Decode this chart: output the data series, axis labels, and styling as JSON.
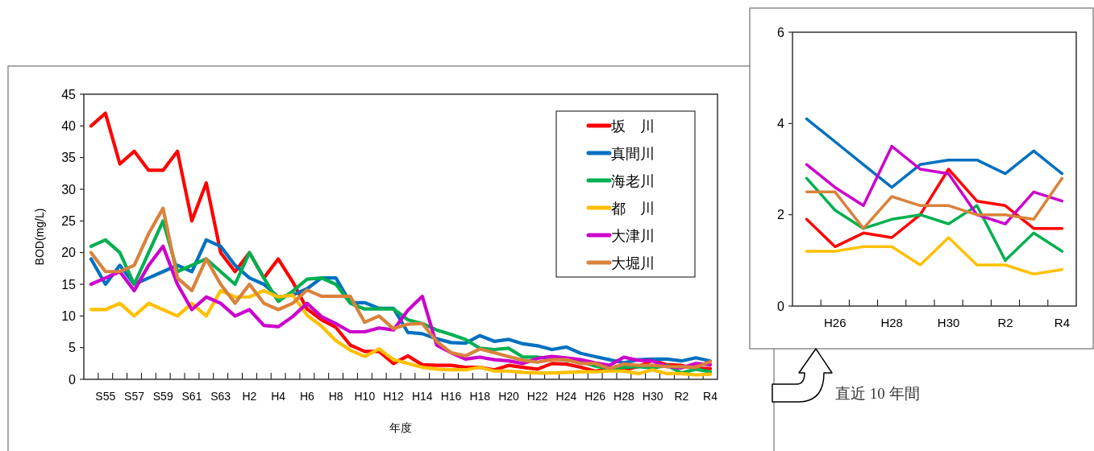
{
  "chart_data": [
    {
      "type": "line",
      "xlabel": "年度",
      "ylabel": "BOD(mg/L)",
      "categories": [
        null,
        "S55",
        null,
        "S57",
        null,
        "S59",
        null,
        "S61",
        null,
        "S63",
        null,
        "H2",
        null,
        "H4",
        null,
        "H6",
        null,
        "H8",
        null,
        "H10",
        null,
        "H12",
        null,
        "H14",
        null,
        "H16",
        null,
        "H18",
        null,
        "H20",
        null,
        "H22",
        null,
        "H24",
        null,
        "H26",
        null,
        "H28",
        null,
        "H30",
        null,
        "R2",
        null,
        "R4"
      ],
      "ylim": [
        0,
        45
      ],
      "yticks": [
        0,
        5,
        10,
        15,
        20,
        25,
        30,
        35,
        40,
        45
      ],
      "legend": "top right",
      "line_style": "solid",
      "series": [
        {
          "name": "坂　川",
          "color": "#ff0000",
          "values": [
            40,
            42,
            34,
            36,
            33,
            33,
            36,
            25,
            31,
            20,
            17,
            20,
            16,
            19,
            15.4,
            11.1,
            9.4,
            8.2,
            5.4,
            4.4,
            4.4,
            2.5,
            3.7,
            2.3,
            2.2,
            2.2,
            1.9,
            1.9,
            1.5,
            2.2,
            1.9,
            1.6,
            2.5,
            2.4,
            1.9,
            1.3,
            1.6,
            1.5,
            2.0,
            3.0,
            2.3,
            2.2,
            1.7,
            1.7
          ]
        },
        {
          "name": "真間川",
          "color": "#0070c0",
          "values": [
            19,
            15,
            18,
            15,
            16,
            17,
            18,
            17,
            22,
            21,
            18,
            16,
            15,
            13,
            13.3,
            14.3,
            16,
            16,
            12.1,
            12.1,
            11.2,
            11.2,
            7.4,
            7.2,
            6.4,
            5.8,
            5.7,
            6.9,
            6.0,
            6.3,
            5.6,
            5.3,
            4.7,
            5.1,
            4.1,
            3.6,
            3.1,
            2.6,
            3.1,
            3.2,
            3.2,
            2.9,
            3.4,
            2.9
          ]
        },
        {
          "name": "海老川",
          "color": "#00b050",
          "values": [
            21,
            22,
            20,
            15,
            20,
            25,
            17,
            18,
            19,
            17,
            15,
            20,
            16,
            12.3,
            13.9,
            15.8,
            16,
            15,
            12,
            11.1,
            11.1,
            11.1,
            9.4,
            8.8,
            7.8,
            7.1,
            6.3,
            4.9,
            4.7,
            4.9,
            3.5,
            3.5,
            3.3,
            3.0,
            2.8,
            2.1,
            1.7,
            1.9,
            2.0,
            1.8,
            2.2,
            1.0,
            1.6,
            1.2
          ]
        },
        {
          "name": "都　川",
          "color": "#ffc000",
          "values": [
            11,
            11,
            12,
            10,
            12,
            11,
            10,
            12,
            10,
            14,
            13,
            13,
            14,
            13,
            13.3,
            10.1,
            8.4,
            6.1,
            4.6,
            3.6,
            4.8,
            3.1,
            2.5,
            1.9,
            1.6,
            1.5,
            1.5,
            1.9,
            1.3,
            1.3,
            1.1,
            1.0,
            1.0,
            1.1,
            1.2,
            1.2,
            1.3,
            1.3,
            0.9,
            1.5,
            0.9,
            0.9,
            0.7,
            0.8
          ]
        },
        {
          "name": "大津川",
          "color": "#cc00cc",
          "values": [
            15,
            16,
            17,
            14,
            18,
            21,
            15,
            11,
            13,
            12,
            10,
            11,
            8.5,
            8.3,
            9.9,
            12,
            9.9,
            8.8,
            7.5,
            7.5,
            8.1,
            7.8,
            10.9,
            13.1,
            5.4,
            4.2,
            3.2,
            3.5,
            3.1,
            2.9,
            2.5,
            3.3,
            3.6,
            3.4,
            3.1,
            2.6,
            2.2,
            3.5,
            3.0,
            2.9,
            2.0,
            1.8,
            2.5,
            2.3
          ]
        },
        {
          "name": "大堀川",
          "color": "#d9823b",
          "values": [
            20,
            17,
            17,
            18,
            23,
            27,
            16,
            14,
            19,
            15,
            12,
            15,
            12,
            11,
            12,
            14.1,
            13.1,
            13.1,
            13.1,
            9.0,
            10,
            8.0,
            8.7,
            8.8,
            6.0,
            4.2,
            3.7,
            4.8,
            4.2,
            3.6,
            3.0,
            2.7,
            3.1,
            3.1,
            2.5,
            2.5,
            1.7,
            2.4,
            2.2,
            2.2,
            2.0,
            2.0,
            1.9,
            2.8
          ]
        }
      ]
    },
    {
      "type": "line",
      "categories": [
        null,
        "H26",
        null,
        "H28",
        null,
        "H30",
        null,
        "R2",
        null,
        "R4"
      ],
      "ylim": [
        0,
        6
      ],
      "yticks": [
        0,
        2,
        4,
        6
      ],
      "line_style": "solid",
      "annotations": [
        "直近 10 年間"
      ],
      "series": [
        {
          "color": "#ff0000",
          "values": [
            1.9,
            1.3,
            1.6,
            1.5,
            2.0,
            3.0,
            2.3,
            2.2,
            1.7,
            1.7
          ]
        },
        {
          "color": "#0070c0",
          "values": [
            4.1,
            3.6,
            3.1,
            2.6,
            3.1,
            3.2,
            3.2,
            2.9,
            3.4,
            2.9
          ]
        },
        {
          "color": "#00b050",
          "values": [
            2.8,
            2.1,
            1.7,
            1.9,
            2.0,
            1.8,
            2.2,
            1.0,
            1.6,
            1.2
          ]
        },
        {
          "color": "#ffc000",
          "values": [
            1.2,
            1.2,
            1.3,
            1.3,
            0.9,
            1.5,
            0.9,
            0.9,
            0.7,
            0.8
          ]
        },
        {
          "color": "#cc00cc",
          "values": [
            3.1,
            2.6,
            2.2,
            3.5,
            3.0,
            2.9,
            2.0,
            1.8,
            2.5,
            2.3
          ]
        },
        {
          "color": "#d9823b",
          "values": [
            2.5,
            2.5,
            1.7,
            2.4,
            2.2,
            2.2,
            2.0,
            2.0,
            1.9,
            2.8
          ]
        }
      ]
    }
  ]
}
